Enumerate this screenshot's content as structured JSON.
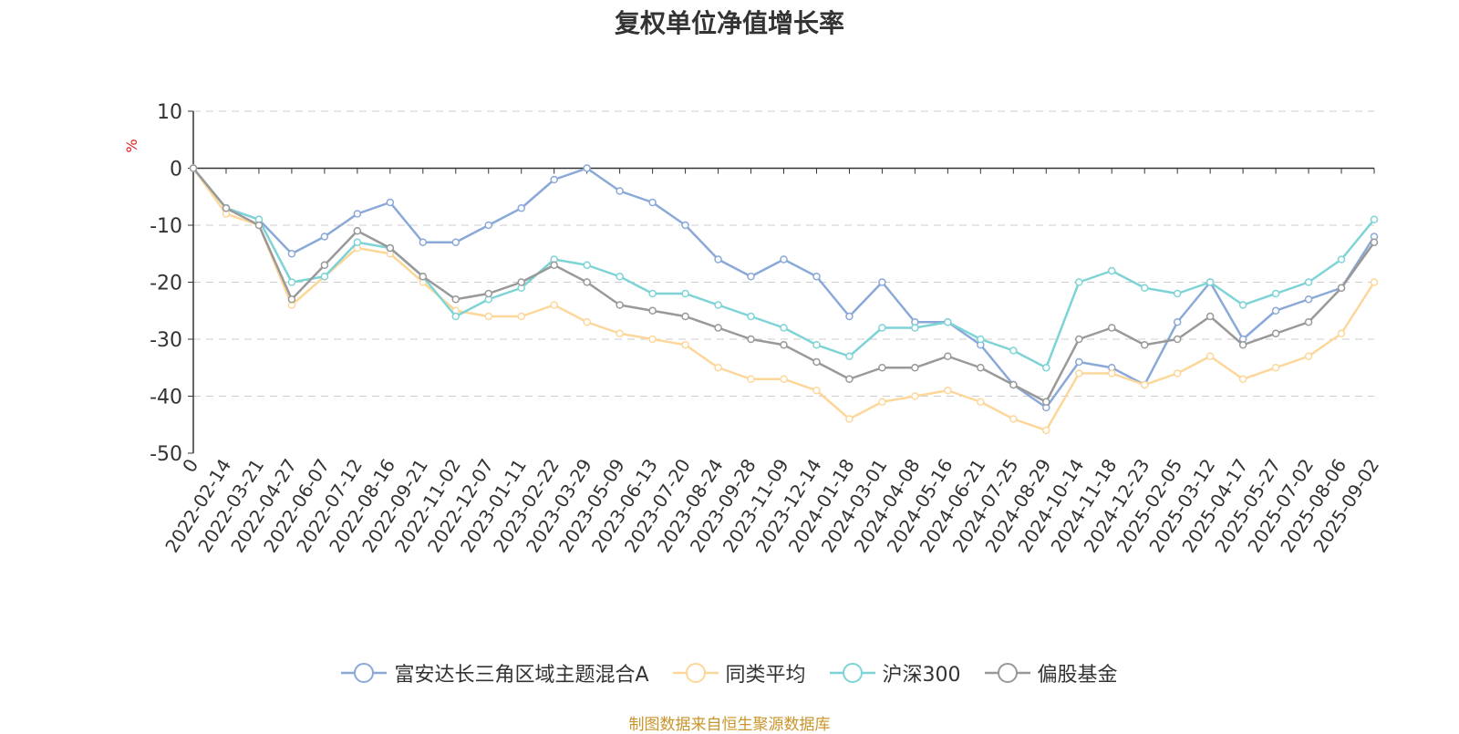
{
  "footer": "制图数据来自恒生聚源数据库",
  "colors": {
    "fund": "#8aa8d8",
    "peer": "#fdd79a",
    "hs300": "#7ed3d6",
    "equity": "#999999",
    "grid": "#cccccc",
    "unit": "#e02020"
  },
  "chart_data": {
    "type": "line",
    "title": "复权单位净值增长率",
    "ylabel": "%",
    "ylim": [
      -50,
      10
    ],
    "yticks": [
      10,
      0,
      -10,
      -20,
      -30,
      -40,
      -50
    ],
    "grid": true,
    "legend_position": "bottom-center",
    "categories": [
      "0",
      "2022-02-14",
      "2022-03-21",
      "2022-04-27",
      "2022-06-07",
      "2022-07-12",
      "2022-08-16",
      "2022-09-21",
      "2022-11-02",
      "2022-12-07",
      "2023-01-11",
      "2023-02-22",
      "2023-03-29",
      "2023-05-09",
      "2023-06-13",
      "2023-07-20",
      "2023-08-24",
      "2023-09-28",
      "2023-11-09",
      "2023-12-14",
      "2024-01-18",
      "2024-03-01",
      "2024-04-08",
      "2024-05-16",
      "2024-06-21",
      "2024-07-25",
      "2024-08-29",
      "2024-10-14",
      "2024-11-18",
      "2024-12-23",
      "2025-02-05",
      "2025-03-12",
      "2025-04-17",
      "2025-05-27",
      "2025-07-02",
      "2025-08-06",
      "2025-09-02"
    ],
    "series": [
      {
        "name": "富安达长三角区域主题混合A",
        "color_key": "fund",
        "values": [
          0,
          -7,
          -9,
          -15,
          -12,
          -8,
          -6,
          -13,
          -13,
          -10,
          -7,
          -2,
          0,
          -4,
          -6,
          -10,
          -16,
          -19,
          -16,
          -19,
          -26,
          -20,
          -27,
          -27,
          -31,
          -38,
          -42,
          -34,
          -35,
          -38,
          -27,
          -20,
          -30,
          -25,
          -23,
          -21,
          -12
        ]
      },
      {
        "name": "同类平均",
        "color_key": "peer",
        "values": [
          0,
          -8,
          -10,
          -24,
          -19,
          -14,
          -15,
          -20,
          -25,
          -26,
          -26,
          -24,
          -27,
          -29,
          -30,
          -31,
          -35,
          -37,
          -37,
          -39,
          -44,
          -41,
          -40,
          -39,
          -41,
          -44,
          -46,
          -36,
          -36,
          -38,
          -36,
          -33,
          -37,
          -35,
          -33,
          -29,
          -20
        ]
      },
      {
        "name": "沪深300",
        "color_key": "hs300",
        "values": [
          0,
          -7,
          -9,
          -20,
          -19,
          -13,
          -14,
          -19,
          -26,
          -23,
          -21,
          -16,
          -17,
          -19,
          -22,
          -22,
          -24,
          -26,
          -28,
          -31,
          -33,
          -28,
          -28,
          -27,
          -30,
          -32,
          -35,
          -20,
          -18,
          -21,
          -22,
          -20,
          -24,
          -22,
          -20,
          -16,
          -9
        ]
      },
      {
        "name": "偏股基金",
        "color_key": "equity",
        "values": [
          0,
          -7,
          -10,
          -23,
          -17,
          -11,
          -14,
          -19,
          -23,
          -22,
          -20,
          -17,
          -20,
          -24,
          -25,
          -26,
          -28,
          -30,
          -31,
          -34,
          -37,
          -35,
          -35,
          -33,
          -35,
          -38,
          -41,
          -30,
          -28,
          -31,
          -30,
          -26,
          -31,
          -29,
          -27,
          -21,
          -13
        ]
      }
    ]
  }
}
